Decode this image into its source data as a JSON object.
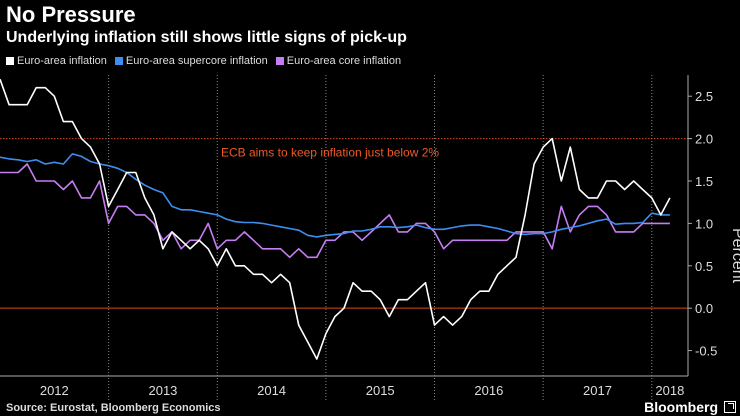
{
  "header": {
    "title": "No Pressure",
    "subtitle": "Underlying inflation still shows little signs of pick-up"
  },
  "footer": {
    "source": "Source: Eurostat, Bloomberg Economics",
    "brand": "Bloomberg"
  },
  "colors": {
    "headline": "#ffffff",
    "supercore": "#3d8ef0",
    "core": "#c77df2",
    "reference_line": "#d8481f",
    "annotation": "#ee5a25"
  },
  "chart_data": {
    "type": "line",
    "ylabel": "Percent",
    "ylim": [
      -0.8,
      2.75
    ],
    "xlim": [
      "2012-01",
      "2018-05"
    ],
    "yticks": [
      "2.5",
      "2.0",
      "1.5",
      "1.0",
      "0.5",
      "0.0",
      "-0.5"
    ],
    "year_labels": [
      "2012",
      "2013",
      "2014",
      "2015",
      "2016",
      "2017",
      "2018"
    ],
    "reference_lines": [
      0.0,
      2.0
    ],
    "annotation": "ECB aims to keep inflation just below 2%",
    "legend_position": "top-left",
    "grid": false,
    "series": [
      {
        "name": "Euro-area inflation",
        "color": "#ffffff",
        "start": "2012-01",
        "values": [
          2.7,
          2.4,
          2.4,
          2.4,
          2.6,
          2.6,
          2.5,
          2.2,
          2.2,
          2.0,
          1.9,
          1.7,
          1.2,
          1.4,
          1.6,
          1.6,
          1.3,
          1.1,
          0.7,
          0.9,
          0.8,
          0.7,
          0.8,
          0.7,
          0.5,
          0.7,
          0.5,
          0.5,
          0.4,
          0.4,
          0.3,
          0.4,
          0.3,
          -0.2,
          -0.4,
          -0.6,
          -0.3,
          -0.1,
          0.0,
          0.3,
          0.2,
          0.2,
          0.1,
          -0.1,
          0.1,
          0.1,
          0.2,
          0.3,
          -0.2,
          -0.1,
          -0.2,
          -0.1,
          0.1,
          0.2,
          0.2,
          0.4,
          0.5,
          0.6,
          1.1,
          1.7,
          1.9,
          2.0,
          1.5,
          1.9,
          1.4,
          1.3,
          1.3,
          1.5,
          1.5,
          1.4,
          1.5,
          1.4,
          1.3,
          1.1,
          1.3
        ]
      },
      {
        "name": "Euro-area supercore inflation",
        "color": "#3d8ef0",
        "start": "2012-01",
        "values": [
          1.78,
          1.76,
          1.75,
          1.73,
          1.75,
          1.7,
          1.72,
          1.7,
          1.82,
          1.79,
          1.73,
          1.7,
          1.68,
          1.65,
          1.6,
          1.52,
          1.45,
          1.4,
          1.36,
          1.2,
          1.16,
          1.16,
          1.14,
          1.12,
          1.1,
          1.05,
          1.02,
          1.01,
          1.01,
          1.0,
          0.98,
          0.96,
          0.94,
          0.92,
          0.86,
          0.84,
          0.86,
          0.87,
          0.88,
          0.91,
          0.91,
          0.93,
          0.96,
          0.96,
          0.95,
          0.96,
          0.98,
          0.95,
          0.93,
          0.93,
          0.95,
          0.97,
          0.98,
          0.98,
          0.96,
          0.94,
          0.91,
          0.88,
          0.87,
          0.88,
          0.88,
          0.9,
          0.93,
          0.95,
          0.97,
          1.0,
          1.03,
          1.05,
          0.99,
          1.0,
          1.0,
          1.01,
          1.12,
          1.1,
          1.1
        ]
      },
      {
        "name": "Euro-area core inflation",
        "color": "#c77df2",
        "start": "2012-01",
        "values": [
          1.6,
          1.6,
          1.6,
          1.7,
          1.5,
          1.5,
          1.5,
          1.4,
          1.5,
          1.3,
          1.3,
          1.5,
          1.0,
          1.2,
          1.2,
          1.1,
          1.1,
          1.0,
          0.8,
          0.9,
          0.7,
          0.8,
          0.8,
          1.0,
          0.7,
          0.8,
          0.8,
          0.9,
          0.8,
          0.7,
          0.7,
          0.7,
          0.6,
          0.7,
          0.6,
          0.6,
          0.8,
          0.8,
          0.9,
          0.9,
          0.8,
          0.9,
          1.0,
          1.1,
          0.9,
          0.9,
          1.0,
          1.0,
          0.9,
          0.7,
          0.8,
          0.8,
          0.8,
          0.8,
          0.8,
          0.8,
          0.8,
          0.9,
          0.9,
          0.9,
          0.9,
          0.7,
          1.2,
          0.9,
          1.1,
          1.2,
          1.2,
          1.1,
          0.9,
          0.9,
          0.9,
          1.0,
          1.0,
          1.0,
          1.0
        ]
      }
    ]
  }
}
